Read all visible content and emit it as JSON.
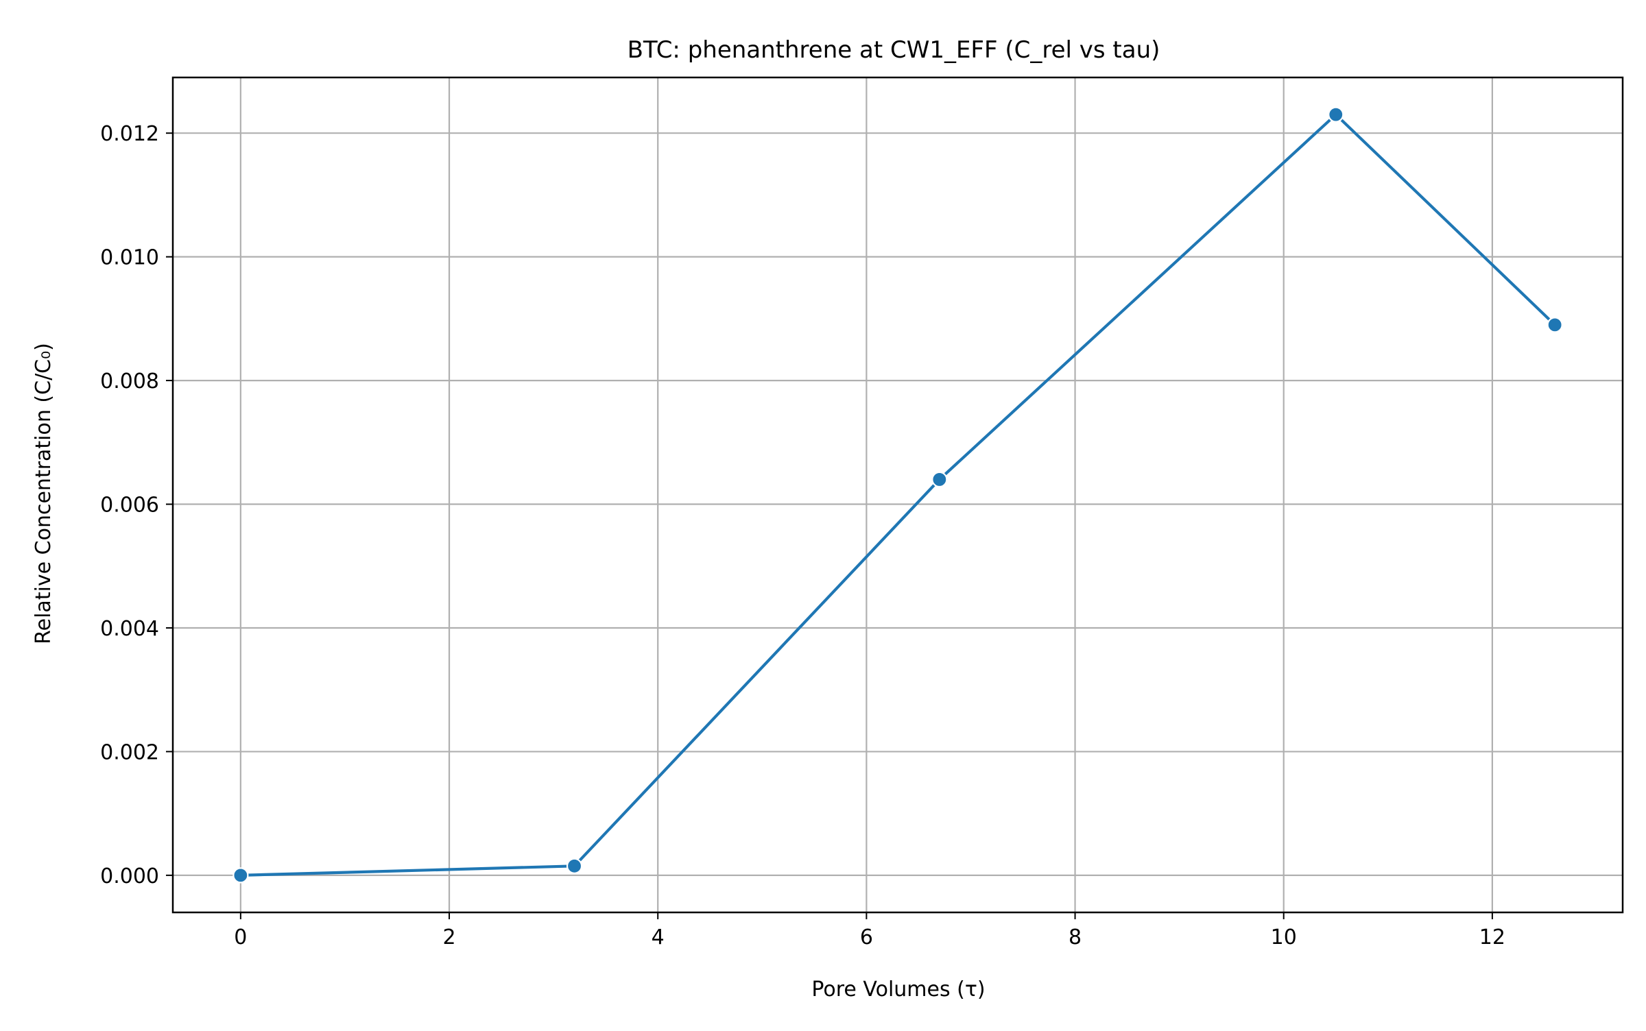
{
  "chart_data": {
    "type": "line",
    "title": "BTC: phenanthrene at CW1_EFF (C_rel vs tau)",
    "xlabel": "Pore Volumes (τ)",
    "ylabel": "Relative Concentration (C/C₀)",
    "xlim": [
      -0.65,
      13.25
    ],
    "ylim": [
      -0.0006,
      0.0129
    ],
    "x_ticks": [
      0,
      2,
      4,
      6,
      8,
      10,
      12
    ],
    "x_tick_labels": [
      "0",
      "2",
      "4",
      "6",
      "8",
      "10",
      "12"
    ],
    "y_ticks": [
      0.0,
      0.002,
      0.004,
      0.006,
      0.008,
      0.01,
      0.012
    ],
    "y_tick_labels": [
      "0.000",
      "0.002",
      "0.004",
      "0.006",
      "0.008",
      "0.010",
      "0.012"
    ],
    "grid": true,
    "series": [
      {
        "color": "#1f77b4",
        "x": [
          0,
          3.2,
          6.7,
          10.5,
          12.6
        ],
        "y": [
          0.0,
          0.00015,
          0.0064,
          0.0123,
          0.0089
        ]
      }
    ]
  }
}
